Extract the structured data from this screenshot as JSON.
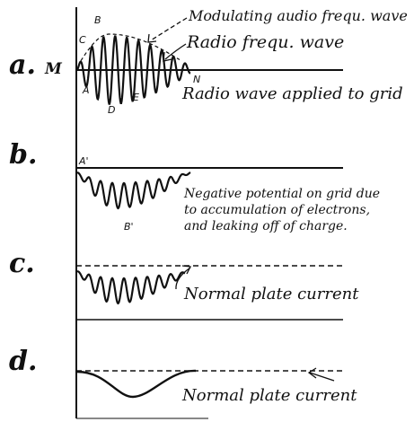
{
  "panels": {
    "a": {
      "letter": "a.",
      "axis_label": "M",
      "end_label": "N",
      "note_1": "Modulating audio frequ. wave",
      "note_2": "Radio frequ. wave",
      "caption": "Radio wave applied to grid",
      "points": [
        "B",
        "C",
        "A",
        "D",
        "E"
      ]
    },
    "b": {
      "letter": "b.",
      "point_1": "A'",
      "point_2": "B'",
      "caption_1": "Negative potential on grid due",
      "caption_2": "to accumulation of electrons,",
      "caption_3": "and leaking off of charge."
    },
    "c": {
      "letter": "c.",
      "caption": "Normal plate current"
    },
    "d": {
      "letter": "d.",
      "caption": "Normal plate current"
    }
  },
  "colors": {
    "ink": "#111111",
    "paper": "#ffffff"
  }
}
